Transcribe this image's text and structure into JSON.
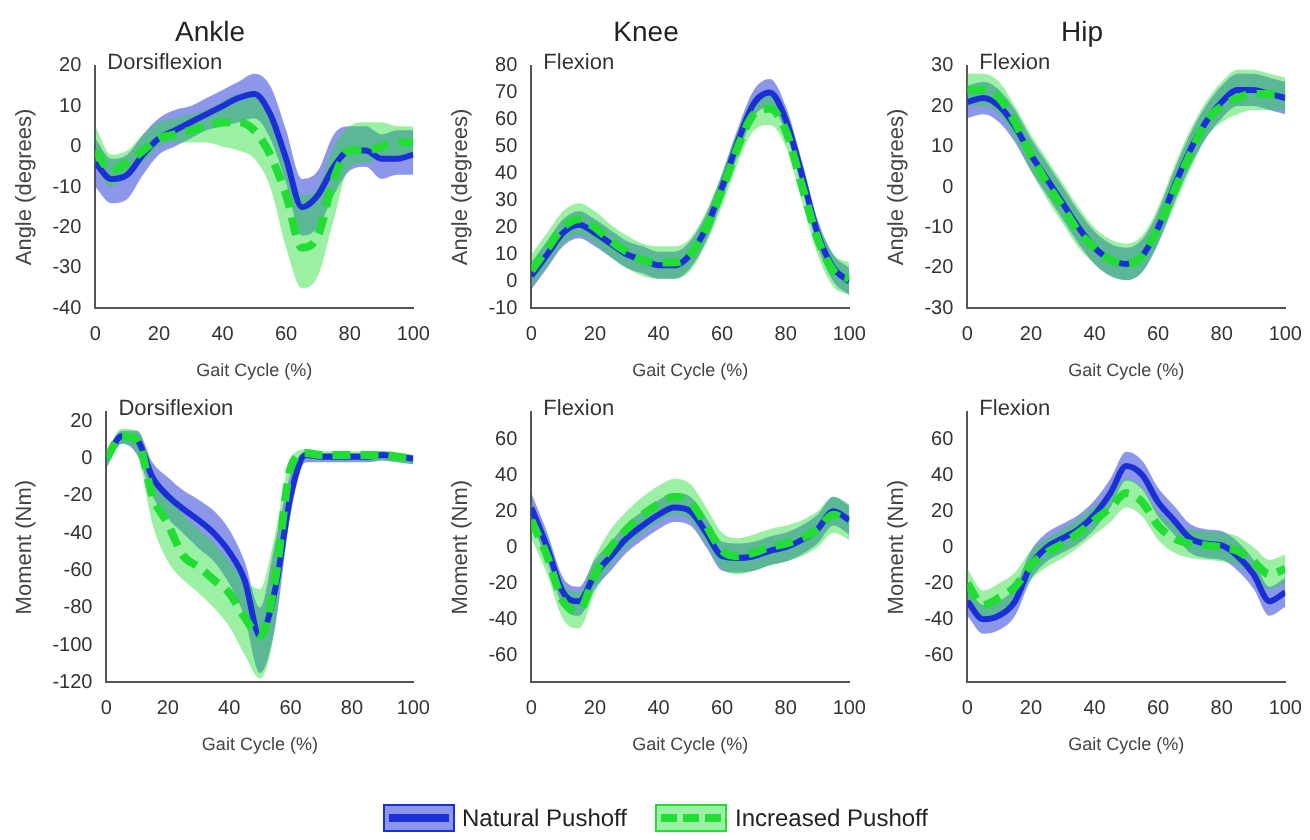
{
  "chart_data": [
    {
      "type": "line",
      "title": "Ankle",
      "xlabel": "Gait Cycle (%)",
      "ylabel": "Angle (degrees)",
      "annotations": [
        "Dorsiflexion"
      ],
      "x": [
        0,
        5,
        10,
        15,
        20,
        25,
        30,
        35,
        40,
        45,
        50,
        55,
        60,
        65,
        70,
        75,
        80,
        85,
        90,
        95,
        100
      ],
      "xlim": [
        0,
        100
      ],
      "xticks": [
        0,
        20,
        40,
        60,
        80,
        100
      ],
      "ylim": [
        -40,
        20
      ],
      "yticks": [
        -40,
        -30,
        -20,
        -10,
        0,
        10,
        20
      ],
      "series": [
        {
          "color": "#1a2fd6",
          "values": [
            -4,
            -8,
            -7,
            -2,
            2,
            4,
            6,
            8,
            10,
            12,
            13,
            8,
            -3,
            -15,
            -12,
            -5,
            -1,
            -1,
            -3,
            -3,
            -2
          ],
          "lower": [
            -10,
            -14,
            -13,
            -7,
            -2,
            0,
            2,
            4,
            5,
            6,
            7,
            2,
            -9,
            -22,
            -20,
            -12,
            -6,
            -5,
            -8,
            -7,
            -7
          ],
          "upper": [
            2,
            -3,
            -2,
            3,
            7,
            9,
            10,
            12,
            14,
            16,
            18,
            15,
            4,
            -8,
            -6,
            3,
            5,
            5,
            3,
            4,
            4
          ]
        },
        {
          "color": "#22dd33",
          "line_style": "dashed",
          "values": [
            -1,
            -6,
            -4,
            -1,
            2,
            3,
            4,
            5,
            6,
            6,
            4,
            -2,
            -12,
            -25,
            -22,
            -8,
            -1,
            -1,
            0,
            1,
            1
          ],
          "lower": [
            -5,
            -10,
            -7,
            -4,
            0,
            1,
            1,
            1,
            0,
            -1,
            -3,
            -10,
            -25,
            -35,
            -32,
            -18,
            -5,
            -4,
            -3,
            -3,
            -3
          ],
          "upper": [
            5,
            -2,
            -1,
            3,
            6,
            7,
            8,
            9,
            11,
            13,
            13,
            8,
            -2,
            -12,
            -10,
            0,
            5,
            6,
            6,
            5,
            5
          ]
        }
      ]
    },
    {
      "type": "line",
      "title": "Knee",
      "xlabel": "Gait Cycle (%)",
      "ylabel": "Angle (degrees)",
      "annotations": [
        "Flexion"
      ],
      "x": [
        0,
        5,
        10,
        15,
        20,
        25,
        30,
        35,
        40,
        45,
        50,
        55,
        60,
        65,
        70,
        75,
        80,
        85,
        90,
        95,
        100
      ],
      "xlim": [
        0,
        100
      ],
      "xticks": [
        0,
        20,
        40,
        60,
        80,
        100
      ],
      "ylim": [
        -10,
        80
      ],
      "yticks": [
        -10,
        0,
        10,
        20,
        30,
        40,
        50,
        60,
        70,
        80
      ],
      "series": [
        {
          "color": "#1a2fd6",
          "values": [
            2,
            10,
            18,
            21,
            18,
            14,
            10,
            8,
            6,
            6,
            10,
            20,
            35,
            52,
            66,
            70,
            60,
            40,
            18,
            5,
            0
          ],
          "lower": [
            -3,
            5,
            13,
            16,
            13,
            9,
            5,
            3,
            1,
            1,
            5,
            15,
            30,
            47,
            61,
            65,
            55,
            35,
            13,
            0,
            -5
          ],
          "upper": [
            7,
            15,
            23,
            26,
            23,
            19,
            15,
            13,
            11,
            11,
            15,
            25,
            40,
            57,
            71,
            75,
            65,
            45,
            23,
            10,
            5
          ]
        },
        {
          "color": "#22dd33",
          "line_style": "dashed",
          "values": [
            4,
            12,
            20,
            23,
            20,
            15,
            11,
            8,
            7,
            7,
            10,
            20,
            34,
            50,
            62,
            64,
            56,
            36,
            16,
            4,
            1
          ],
          "lower": [
            -2,
            6,
            14,
            17,
            14,
            9,
            5,
            2,
            1,
            1,
            4,
            14,
            28,
            44,
            56,
            58,
            50,
            30,
            10,
            -2,
            -5
          ],
          "upper": [
            10,
            18,
            26,
            29,
            26,
            21,
            17,
            14,
            13,
            13,
            16,
            26,
            40,
            56,
            68,
            70,
            62,
            42,
            22,
            10,
            7
          ]
        }
      ]
    },
    {
      "type": "line",
      "title": "Hip",
      "xlabel": "Gait Cycle (%)",
      "ylabel": "Angle (degrees)",
      "annotations": [
        "Flexion"
      ],
      "x": [
        0,
        5,
        10,
        15,
        20,
        25,
        30,
        35,
        40,
        45,
        50,
        55,
        60,
        65,
        70,
        75,
        80,
        85,
        90,
        95,
        100
      ],
      "xlim": [
        0,
        100
      ],
      "xticks": [
        0,
        20,
        40,
        60,
        80,
        100
      ],
      "ylim": [
        -30,
        30
      ],
      "yticks": [
        -30,
        -20,
        -10,
        0,
        10,
        20,
        30
      ],
      "series": [
        {
          "color": "#1a2fd6",
          "values": [
            21,
            22,
            20,
            15,
            8,
            2,
            -4,
            -10,
            -15,
            -18,
            -19,
            -17,
            -10,
            0,
            9,
            16,
            21,
            24,
            24,
            23,
            22
          ],
          "lower": [
            17,
            18,
            16,
            11,
            4,
            -2,
            -8,
            -14,
            -19,
            -22,
            -23,
            -21,
            -14,
            -4,
            5,
            12,
            17,
            20,
            20,
            19,
            18
          ],
          "upper": [
            25,
            26,
            24,
            19,
            12,
            6,
            0,
            -6,
            -11,
            -14,
            -15,
            -13,
            -6,
            4,
            13,
            20,
            25,
            28,
            28,
            27,
            26
          ]
        },
        {
          "color": "#22dd33",
          "line_style": "dashed",
          "values": [
            24,
            24,
            22,
            16,
            8,
            1,
            -5,
            -11,
            -15,
            -18,
            -19,
            -17,
            -10,
            -1,
            8,
            16,
            20,
            22,
            23,
            23,
            23
          ],
          "lower": [
            20,
            20,
            18,
            12,
            4,
            -3,
            -9,
            -15,
            -19,
            -22,
            -23,
            -21,
            -14,
            -5,
            4,
            12,
            16,
            18,
            19,
            19,
            19
          ],
          "upper": [
            28,
            28,
            26,
            20,
            13,
            7,
            1,
            -5,
            -10,
            -13,
            -14,
            -12,
            -5,
            5,
            14,
            21,
            26,
            29,
            29,
            28,
            27
          ]
        }
      ]
    },
    {
      "type": "line",
      "xlabel": "Gait Cycle (%)",
      "ylabel": "Moment (Nm)",
      "annotations": [
        "Dorsiflexion"
      ],
      "x": [
        0,
        5,
        10,
        15,
        20,
        25,
        30,
        35,
        40,
        45,
        50,
        55,
        60,
        65,
        70,
        75,
        80,
        85,
        90,
        95,
        100
      ],
      "xlim": [
        0,
        100
      ],
      "xticks": [
        0,
        20,
        40,
        60,
        80,
        100
      ],
      "ylim": [
        -120,
        25
      ],
      "yticks": [
        -120,
        -100,
        -80,
        -60,
        -40,
        -20,
        0,
        20
      ],
      "series": [
        {
          "color": "#1a2fd6",
          "values": [
            0,
            12,
            10,
            -10,
            -20,
            -27,
            -33,
            -40,
            -50,
            -65,
            -95,
            -70,
            -20,
            2,
            1,
            1,
            1,
            1,
            2,
            1,
            0
          ],
          "lower": [
            -5,
            8,
            2,
            -20,
            -32,
            -40,
            -48,
            -55,
            -67,
            -85,
            -115,
            -90,
            -30,
            -2,
            -2,
            -2,
            -2,
            -2,
            -1,
            -2,
            -3
          ],
          "upper": [
            3,
            15,
            15,
            -2,
            -10,
            -17,
            -22,
            -28,
            -38,
            -55,
            -80,
            -45,
            -8,
            4,
            3,
            3,
            3,
            3,
            4,
            3,
            2
          ]
        },
        {
          "color": "#22dd33",
          "line_style": "dashed",
          "values": [
            0,
            12,
            10,
            -20,
            -35,
            -52,
            -58,
            -65,
            -72,
            -85,
            -95,
            -65,
            -5,
            3,
            2,
            2,
            2,
            2,
            2,
            1,
            0
          ],
          "lower": [
            -4,
            8,
            3,
            -35,
            -55,
            -65,
            -72,
            -80,
            -90,
            -105,
            -118,
            -90,
            -10,
            0,
            -1,
            -1,
            -1,
            -1,
            -1,
            -2,
            -3
          ],
          "upper": [
            4,
            16,
            15,
            -8,
            -18,
            -30,
            -38,
            -45,
            -55,
            -65,
            -70,
            -40,
            0,
            5,
            4,
            4,
            4,
            4,
            4,
            3,
            2
          ]
        }
      ]
    },
    {
      "type": "line",
      "xlabel": "Gait Cycle (%)",
      "ylabel": "Moment (Nm)",
      "annotations": [
        "Flexion"
      ],
      "legend": "bottom",
      "x": [
        0,
        5,
        10,
        15,
        20,
        25,
        30,
        35,
        40,
        45,
        50,
        55,
        60,
        65,
        70,
        75,
        80,
        85,
        90,
        95,
        100
      ],
      "xlim": [
        0,
        100
      ],
      "xticks": [
        0,
        20,
        40,
        60,
        80,
        100
      ],
      "ylim": [
        -75,
        75
      ],
      "yticks": [
        -60,
        -40,
        -20,
        0,
        20,
        40,
        60
      ],
      "series": [
        {
          "name": "Natural Pushoff",
          "color": "#1a2fd6",
          "values": [
            22,
            0,
            -25,
            -30,
            -15,
            -5,
            5,
            12,
            18,
            22,
            20,
            8,
            -5,
            -6,
            -5,
            -2,
            0,
            4,
            10,
            20,
            15
          ],
          "lower": [
            14,
            -8,
            -33,
            -38,
            -23,
            -13,
            -3,
            4,
            10,
            14,
            12,
            0,
            -13,
            -14,
            -13,
            -10,
            -8,
            -4,
            2,
            12,
            7
          ],
          "upper": [
            30,
            8,
            -17,
            -22,
            -7,
            3,
            13,
            20,
            26,
            30,
            28,
            16,
            3,
            2,
            3,
            6,
            8,
            12,
            18,
            28,
            23
          ]
        },
        {
          "name": "Increased Pushoff",
          "color": "#22dd33",
          "line_style": "dashed",
          "values": [
            15,
            -5,
            -30,
            -35,
            -15,
            0,
            10,
            18,
            24,
            28,
            25,
            12,
            -2,
            -5,
            -3,
            0,
            2,
            5,
            10,
            18,
            14
          ],
          "lower": [
            5,
            -15,
            -40,
            -45,
            -25,
            -10,
            0,
            8,
            14,
            18,
            15,
            2,
            -12,
            -15,
            -13,
            -10,
            -8,
            -5,
            0,
            8,
            4
          ],
          "upper": [
            25,
            5,
            -20,
            -25,
            -5,
            10,
            20,
            28,
            34,
            38,
            35,
            22,
            8,
            5,
            7,
            10,
            12,
            15,
            20,
            28,
            24
          ]
        }
      ]
    },
    {
      "type": "line",
      "xlabel": "Gait Cycle (%)",
      "ylabel": "Moment (Nm)",
      "annotations": [
        "Flexion"
      ],
      "x": [
        0,
        5,
        10,
        15,
        20,
        25,
        30,
        35,
        40,
        45,
        50,
        55,
        60,
        65,
        70,
        75,
        80,
        85,
        90,
        95,
        100
      ],
      "xlim": [
        0,
        100
      ],
      "xticks": [
        0,
        20,
        40,
        60,
        80,
        100
      ],
      "ylim": [
        -75,
        75
      ],
      "yticks": [
        -60,
        -40,
        -20,
        0,
        20,
        40,
        60
      ],
      "series": [
        {
          "color": "#1a2fd6",
          "values": [
            -30,
            -40,
            -38,
            -30,
            -10,
            0,
            5,
            10,
            18,
            30,
            45,
            40,
            25,
            15,
            5,
            2,
            1,
            -5,
            -15,
            -30,
            -25
          ],
          "lower": [
            -38,
            -48,
            -46,
            -38,
            -18,
            -8,
            -3,
            2,
            10,
            22,
            37,
            32,
            17,
            7,
            -3,
            -6,
            -7,
            -13,
            -23,
            -38,
            -33
          ],
          "upper": [
            -22,
            -32,
            -30,
            -22,
            -2,
            8,
            13,
            18,
            26,
            38,
            53,
            48,
            33,
            23,
            13,
            10,
            9,
            3,
            -7,
            -22,
            -17
          ]
        },
        {
          "color": "#22dd33",
          "line_style": "dashed",
          "values": [
            -20,
            -32,
            -28,
            -22,
            -10,
            -3,
            2,
            8,
            15,
            22,
            30,
            25,
            12,
            5,
            2,
            1,
            0,
            -2,
            -8,
            -15,
            -12
          ],
          "lower": [
            -28,
            -40,
            -36,
            -30,
            -18,
            -11,
            -6,
            0,
            7,
            14,
            22,
            17,
            4,
            -3,
            -6,
            -7,
            -8,
            -10,
            -16,
            -23,
            -20
          ],
          "upper": [
            -12,
            -24,
            -20,
            -14,
            -2,
            5,
            10,
            16,
            23,
            30,
            38,
            33,
            20,
            13,
            10,
            9,
            8,
            6,
            0,
            -7,
            -4
          ]
        }
      ]
    }
  ]
}
